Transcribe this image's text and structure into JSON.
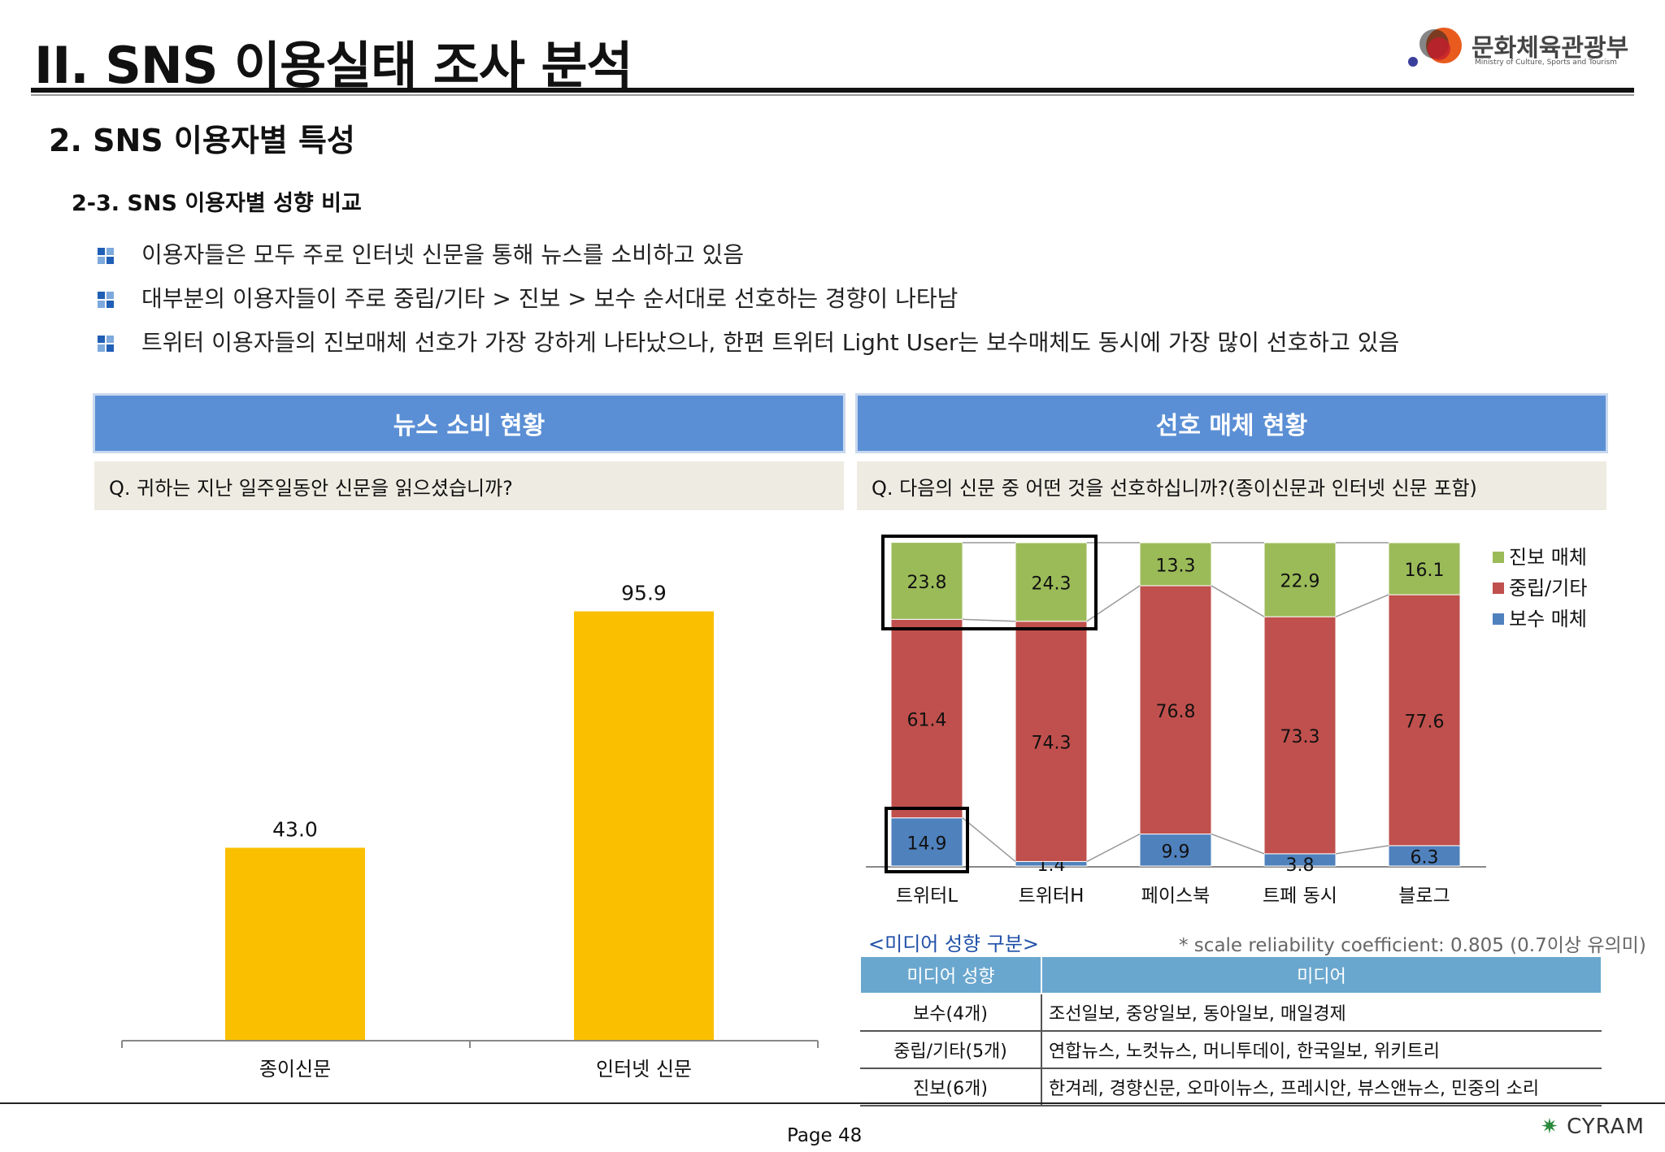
{
  "header": {
    "title": "II. SNS 이용실태 조사 분석",
    "ministry_name": "문화체육관광부",
    "ministry_en": "Ministry of Culture, Sports and Tourism"
  },
  "section_title": "2. SNS 이용자별 특성",
  "sub_title": "2-3. SNS 이용자별 성향 비교",
  "bullets": [
    "이용자들은 모두 주로 인터넷 신문을 통해 뉴스를 소비하고 있음",
    "대부분의 이용자들이 주로 중립/기타 > 진보 > 보수 순서대로 선호하는 경향이 나타남",
    "트위터 이용자들의 진보매체 선호가 가장 강하게 나타났으나, 한편 트위터 Light User는 보수매체도 동시에 가장 많이 선호하고 있음"
  ],
  "left_panel": {
    "heading": "뉴스 소비 현황",
    "question": "Q. 귀하는 지난 일주일동안 신문을 읽으셨습니까?"
  },
  "right_panel": {
    "heading": "선호 매체 현황",
    "question": "Q. 다음의 신문 중 어떤 것을 선호하십니까?(종이신문과 인터넷 신문 포함)"
  },
  "chart_data": [
    {
      "type": "bar",
      "categories": [
        "종이신문",
        "인터넷 신문"
      ],
      "values": [
        43.0,
        95.9
      ],
      "value_labels": [
        "43.0",
        "95.9"
      ],
      "ylim": [
        0,
        100
      ],
      "color": "#fac000",
      "grid": false
    },
    {
      "type": "bar",
      "stacked": true,
      "categories": [
        "트위터L",
        "트위터H",
        "페이스북",
        "트페 동시",
        "블로그"
      ],
      "series": [
        {
          "name": "보수 매체",
          "color": "#4f81bd",
          "values": [
            14.9,
            1.4,
            9.9,
            3.8,
            6.3
          ],
          "labels": [
            "14.9",
            "1.4",
            "9.9",
            "3.8",
            "6.3"
          ]
        },
        {
          "name": "중립/기타",
          "color": "#c0504d",
          "values": [
            61.4,
            74.3,
            76.8,
            73.3,
            77.6
          ],
          "labels": [
            "61.4",
            "74.3",
            "76.8",
            "73.3",
            "77.6"
          ]
        },
        {
          "name": "진보 매체",
          "color": "#9bbb59",
          "values": [
            23.8,
            24.3,
            13.3,
            22.9,
            16.1
          ],
          "labels": [
            "23.8",
            "24.3",
            "13.3",
            "22.9",
            "16.1"
          ]
        }
      ],
      "legend": [
        "진보 매체",
        "중립/기타",
        "보수 매체"
      ],
      "legend_position": "right",
      "ylim": [
        0,
        100
      ]
    }
  ],
  "media_table": {
    "caption": "<미디어 성향 구분>",
    "note": "* scale reliability coefficient: 0.805 (0.7이상 유의미)",
    "headers": [
      "미디어 성향",
      "미디어"
    ],
    "rows": [
      [
        "보수(4개)",
        "조선일보, 중앙일보, 동아일보, 매일경제"
      ],
      [
        "중립/기타(5개)",
        "연합뉴스, 노컷뉴스, 머니투데이, 한국일보, 위키트리"
      ],
      [
        "진보(6개)",
        "한겨레, 경향신문, 오마이뉴스, 프레시안,   뷰스앤뉴스, 민중의 소리"
      ]
    ]
  },
  "footer": {
    "page": "Page  48",
    "brand": "CYRAM"
  }
}
